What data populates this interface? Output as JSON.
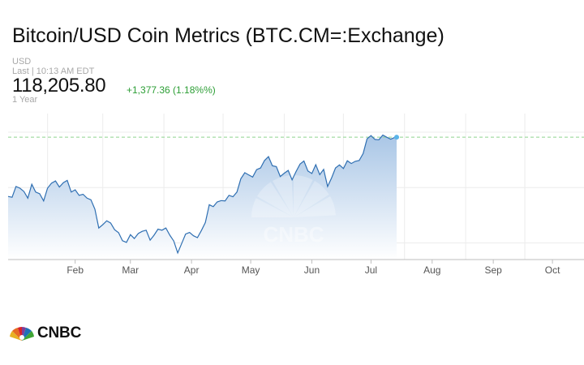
{
  "header": {
    "title": "Bitcoin/USD Coin Metrics (BTC.CM=:Exchange)",
    "currency": "USD",
    "last_line": "Last | 10:13 AM EDT",
    "price": "118,205.80",
    "change": "+1,377.36 (1.18%%)",
    "period": "1 Year"
  },
  "colors": {
    "line": "#2f6fb2",
    "fill_top": "#a9c6e6",
    "fill_bottom": "#ffffff",
    "reference_line": "#8fd48f",
    "grid": "#ececec",
    "marker": "#5ab4e8",
    "positive": "#2c9e35"
  },
  "brand": {
    "logo_text": "CNBC",
    "watermark": "CNBC"
  },
  "chart_data": {
    "type": "area",
    "title": "",
    "xlabel": "",
    "ylabel": "",
    "x_ticks": [
      "Feb",
      "Mar",
      "Apr",
      "May",
      "Jun",
      "Jul",
      "Aug",
      "Sep",
      "Oct"
    ],
    "x_range": [
      "2025-01-12",
      "2025-10-31"
    ],
    "reference_value": 118205.8,
    "series": [
      {
        "x": [
          "2025-01-12",
          "2025-01-14",
          "2025-01-16",
          "2025-01-18",
          "2025-01-20",
          "2025-01-22",
          "2025-01-24",
          "2025-01-26",
          "2025-01-28",
          "2025-01-30",
          "2025-02-01",
          "2025-02-03",
          "2025-02-05",
          "2025-02-07",
          "2025-02-09",
          "2025-02-11",
          "2025-02-13",
          "2025-02-15",
          "2025-02-17",
          "2025-02-19",
          "2025-02-21",
          "2025-02-23",
          "2025-02-25",
          "2025-02-27",
          "2025-03-01",
          "2025-03-03",
          "2025-03-05",
          "2025-03-07",
          "2025-03-09",
          "2025-03-11",
          "2025-03-13",
          "2025-03-15",
          "2025-03-17",
          "2025-03-19",
          "2025-03-21",
          "2025-03-23",
          "2025-03-25",
          "2025-03-27",
          "2025-03-29",
          "2025-03-31",
          "2025-04-02",
          "2025-04-04",
          "2025-04-06",
          "2025-04-08",
          "2025-04-10",
          "2025-04-12",
          "2025-04-14",
          "2025-04-16",
          "2025-04-18",
          "2025-04-20",
          "2025-04-22",
          "2025-04-24",
          "2025-04-26",
          "2025-04-28",
          "2025-04-30",
          "2025-05-02",
          "2025-05-04",
          "2025-05-06",
          "2025-05-08",
          "2025-05-10",
          "2025-05-12",
          "2025-05-14",
          "2025-05-16",
          "2025-05-18",
          "2025-05-20",
          "2025-05-22",
          "2025-05-24",
          "2025-05-26",
          "2025-05-28",
          "2025-05-30",
          "2025-06-01",
          "2025-06-03",
          "2025-06-05",
          "2025-06-07",
          "2025-06-09",
          "2025-06-11",
          "2025-06-13",
          "2025-06-15",
          "2025-06-17",
          "2025-06-19",
          "2025-06-21",
          "2025-06-23",
          "2025-06-25",
          "2025-06-27",
          "2025-06-29",
          "2025-07-01",
          "2025-07-03",
          "2025-07-05",
          "2025-07-07",
          "2025-07-09",
          "2025-07-11",
          "2025-07-13",
          "2025-07-15",
          "2025-07-17",
          "2025-07-19",
          "2025-07-21",
          "2025-07-23",
          "2025-07-25",
          "2025-07-27",
          "2025-07-28"
        ],
        "values": [
          96800,
          96500,
          100400,
          99800,
          98600,
          96200,
          101200,
          98400,
          97800,
          95200,
          99800,
          101600,
          102400,
          100200,
          101800,
          102600,
          98400,
          99200,
          97200,
          97600,
          96200,
          95600,
          92200,
          85400,
          86600,
          88000,
          87200,
          84800,
          83700,
          80800,
          80200,
          83000,
          81600,
          83400,
          84200,
          84600,
          81000,
          82800,
          85000,
          84600,
          85400,
          82800,
          80700,
          76400,
          79800,
          83200,
          83800,
          82600,
          81900,
          84500,
          87400,
          93800,
          93100,
          94800,
          95300,
          95200,
          97200,
          96700,
          98400,
          103200,
          105400,
          104600,
          103800,
          106500,
          107100,
          109800,
          111200,
          107900,
          107600,
          104000,
          105200,
          106200,
          102800,
          105800,
          108500,
          109600,
          106000,
          105100,
          108300,
          104700,
          106600,
          100400,
          103500,
          107100,
          108200,
          106900,
          109700,
          108700,
          109500,
          109800,
          112300,
          117600,
          118800,
          117400,
          117300,
          119000,
          118200,
          117500,
          118100,
          118205.8
        ],
        "y_range": [
          74000,
          125000
        ]
      }
    ],
    "grid": true,
    "legend": "none",
    "marker_at_last_point": true
  }
}
